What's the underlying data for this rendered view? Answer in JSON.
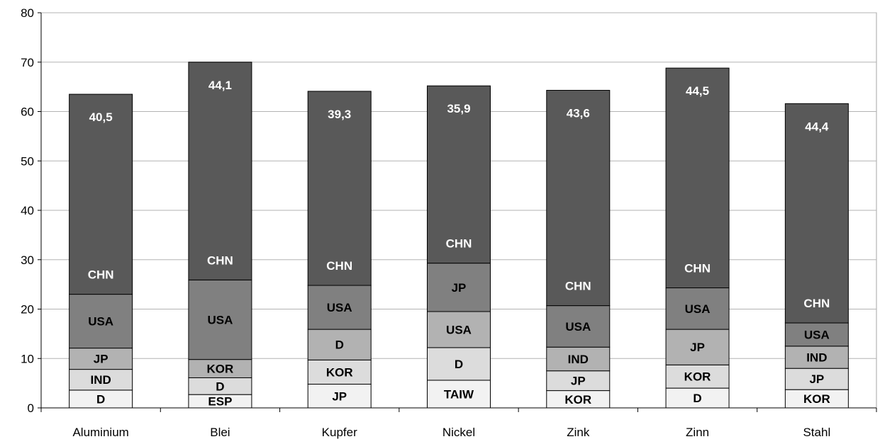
{
  "chart_data": {
    "type": "bar",
    "stacked": true,
    "title": "",
    "xlabel": "",
    "ylabel": "",
    "ylim": [
      0,
      80
    ],
    "yticks": [
      "0",
      "10",
      "20",
      "30",
      "40",
      "50",
      "60",
      "70",
      "80"
    ],
    "grid": true,
    "legend": "none",
    "categories": [
      "Aluminium",
      "Blei",
      "Kupfer",
      "Nickel",
      "Zink",
      "Zinn",
      "Stahl"
    ],
    "stacks": [
      {
        "category": "Aluminium",
        "segments": [
          {
            "label": "D",
            "value": 3.6,
            "color": "#f2f2f2",
            "text_color": "#000000"
          },
          {
            "label": "IND",
            "value": 4.2,
            "color": "#dcdcdc",
            "text_color": "#000000"
          },
          {
            "label": "JP",
            "value": 4.3,
            "color": "#b2b2b2",
            "text_color": "#000000"
          },
          {
            "label": "USA",
            "value": 10.9,
            "color": "#808080",
            "text_color": "#000000"
          },
          {
            "label": "CHN",
            "value": 40.5,
            "color": "#595959",
            "text_color": "#ffffff",
            "value_label": "40,5"
          }
        ]
      },
      {
        "category": "Blei",
        "segments": [
          {
            "label": "ESP",
            "value": 2.7,
            "color": "#f2f2f2",
            "text_color": "#000000"
          },
          {
            "label": "D",
            "value": 3.4,
            "color": "#dcdcdc",
            "text_color": "#000000"
          },
          {
            "label": "KOR",
            "value": 3.7,
            "color": "#b2b2b2",
            "text_color": "#000000"
          },
          {
            "label": "USA",
            "value": 16.1,
            "color": "#808080",
            "text_color": "#000000"
          },
          {
            "label": "CHN",
            "value": 44.1,
            "color": "#595959",
            "text_color": "#ffffff",
            "value_label": "44,1"
          }
        ]
      },
      {
        "category": "Kupfer",
        "segments": [
          {
            "label": "JP",
            "value": 4.8,
            "color": "#f2f2f2",
            "text_color": "#000000"
          },
          {
            "label": "KOR",
            "value": 4.9,
            "color": "#dcdcdc",
            "text_color": "#000000"
          },
          {
            "label": "D",
            "value": 6.2,
            "color": "#b2b2b2",
            "text_color": "#000000"
          },
          {
            "label": "USA",
            "value": 8.9,
            "color": "#808080",
            "text_color": "#000000"
          },
          {
            "label": "CHN",
            "value": 39.3,
            "color": "#595959",
            "text_color": "#ffffff",
            "value_label": "39,3"
          }
        ]
      },
      {
        "category": "Nickel",
        "segments": [
          {
            "label": "TAIW",
            "value": 5.6,
            "color": "#f2f2f2",
            "text_color": "#000000"
          },
          {
            "label": "D",
            "value": 6.6,
            "color": "#dcdcdc",
            "text_color": "#000000"
          },
          {
            "label": "USA",
            "value": 7.3,
            "color": "#b2b2b2",
            "text_color": "#000000"
          },
          {
            "label": "JP",
            "value": 9.8,
            "color": "#808080",
            "text_color": "#000000"
          },
          {
            "label": "CHN",
            "value": 35.9,
            "color": "#595959",
            "text_color": "#ffffff",
            "value_label": "35,9"
          }
        ]
      },
      {
        "category": "Zink",
        "segments": [
          {
            "label": "KOR",
            "value": 3.5,
            "color": "#f2f2f2",
            "text_color": "#000000"
          },
          {
            "label": "JP",
            "value": 4.0,
            "color": "#dcdcdc",
            "text_color": "#000000"
          },
          {
            "label": "IND",
            "value": 4.8,
            "color": "#b2b2b2",
            "text_color": "#000000"
          },
          {
            "label": "USA",
            "value": 8.4,
            "color": "#808080",
            "text_color": "#000000"
          },
          {
            "label": "CHN",
            "value": 43.6,
            "color": "#595959",
            "text_color": "#ffffff",
            "value_label": "43,6"
          }
        ]
      },
      {
        "category": "Zinn",
        "segments": [
          {
            "label": "D",
            "value": 4.0,
            "color": "#f2f2f2",
            "text_color": "#000000"
          },
          {
            "label": "KOR",
            "value": 4.7,
            "color": "#dcdcdc",
            "text_color": "#000000"
          },
          {
            "label": "JP",
            "value": 7.2,
            "color": "#b2b2b2",
            "text_color": "#000000"
          },
          {
            "label": "USA",
            "value": 8.4,
            "color": "#808080",
            "text_color": "#000000"
          },
          {
            "label": "CHN",
            "value": 44.5,
            "color": "#595959",
            "text_color": "#ffffff",
            "value_label": "44,5"
          }
        ]
      },
      {
        "category": "Stahl",
        "segments": [
          {
            "label": "KOR",
            "value": 3.7,
            "color": "#f2f2f2",
            "text_color": "#000000"
          },
          {
            "label": "JP",
            "value": 4.3,
            "color": "#dcdcdc",
            "text_color": "#000000"
          },
          {
            "label": "IND",
            "value": 4.5,
            "color": "#b2b2b2",
            "text_color": "#000000"
          },
          {
            "label": "USA",
            "value": 4.7,
            "color": "#808080",
            "text_color": "#000000"
          },
          {
            "label": "CHN",
            "value": 44.4,
            "color": "#595959",
            "text_color": "#ffffff",
            "value_label": "44,4"
          }
        ]
      }
    ]
  }
}
